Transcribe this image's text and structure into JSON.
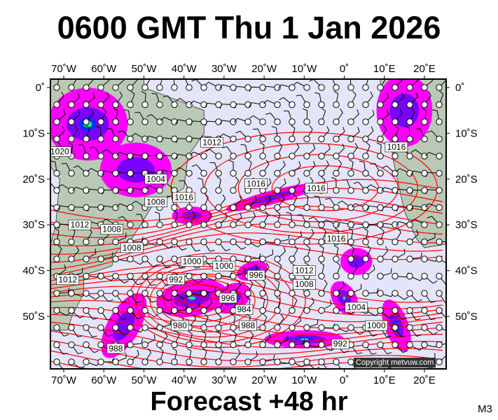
{
  "title": "0600 GMT Thu 1 Jan 2026",
  "footer": "Forecast +48 hr",
  "model_code": "M3",
  "copyright": "Copyright metvuw.com",
  "lon_labels": [
    "70˚W",
    "60˚W",
    "50˚W",
    "40˚W",
    "30˚W",
    "20˚W",
    "10˚W",
    "0˚",
    "10˚E",
    "20˚E"
  ],
  "lat_labels": [
    "0˚",
    "10˚S",
    "20˚S",
    "30˚S",
    "40˚S",
    "50˚S"
  ],
  "isobar_labels": [
    "1012",
    "1016",
    "1016",
    "1016",
    "1012",
    "1008",
    "1008",
    "1004",
    "1000",
    "1000",
    "996",
    "996",
    "992",
    "988",
    "984",
    "980",
    "988",
    "1012",
    "1008",
    "1020",
    "1016",
    "1008",
    "1004",
    "1000",
    "992",
    "1016",
    "1012"
  ],
  "colors": {
    "ocean": "#e4e4fa",
    "land": "#b9c9b5",
    "isobar": "#ff0000",
    "precip_light": "#ff00ff",
    "precip_mid": "#7a00ff",
    "precip_heavy": "#0030ff",
    "precip_extreme": "#00ff80"
  }
}
